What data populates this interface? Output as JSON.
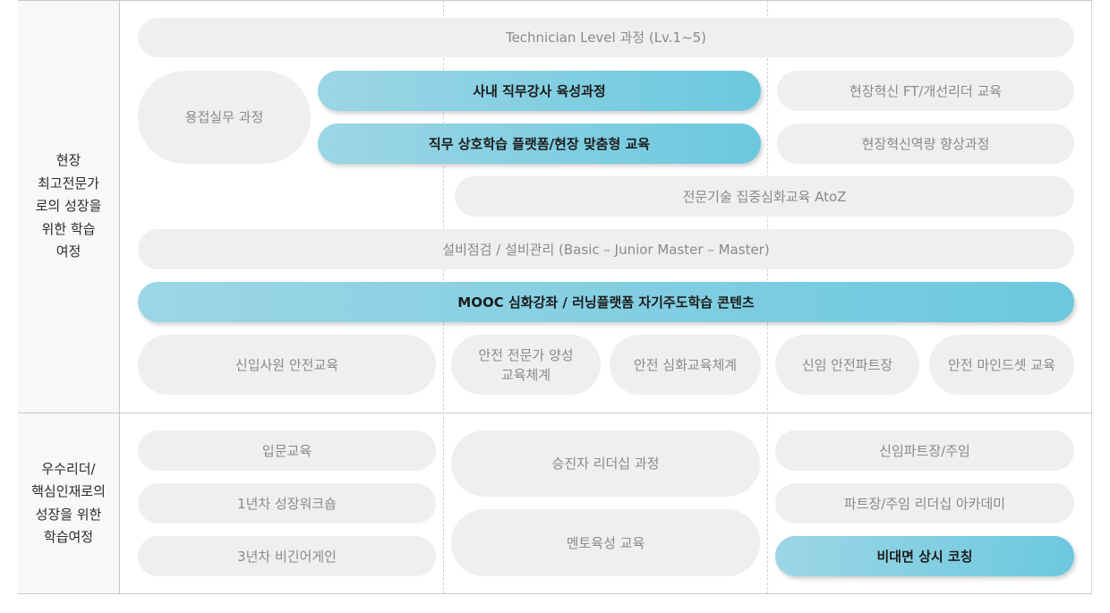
{
  "section1": {
    "label": "현장\n최고전문가\n로의 성장을\n위한 학습\n여정",
    "pills": {
      "technician": "Technician Level 과정 (Lv.1~5)",
      "welding": "용접실무 과정",
      "instructor": "사내 직무강사 육성과정",
      "fieldInnovationFT": "현장혁신 FT/개선리더 교육",
      "mutualLearning": "직무 상호학습 플랫폼/현장 맞춤형 교육",
      "fieldInnovationCapability": "현장혁신역량 향상과정",
      "techAtoZ": "전문기술 집중심화교육 AtoZ",
      "equipment": "설비점검 / 설비관리 (Basic – Junior Master – Master)",
      "mooc": "MOOC 심화강좌 / 러닝플랫폼 자기주도학습 콘텐츠",
      "newHireSafety": "신입사원 안전교육",
      "safetyExpert": "안전 전문가 양성\n교육체계",
      "safetyAdvanced": "안전 심화교육체계",
      "newSafetyPartLeader": "신임 안전파트장",
      "safetyMindset": "안전 마인드셋 교육"
    }
  },
  "section2": {
    "label": "우수리더/\n핵심인재로의\n성장을 위한\n학습여정",
    "pills": {
      "intro": "입문교육",
      "firstYear": "1년차 성장워크숍",
      "thirdYear": "3년차 비긴어게인",
      "promotee": "승진자 리더십 과정",
      "mentor": "멘토육성 교육",
      "newPartLeader": "신임파트장/주임",
      "academy": "파트장/주임 리더십 아카데미",
      "coaching": "비대면 상시 코칭"
    }
  }
}
